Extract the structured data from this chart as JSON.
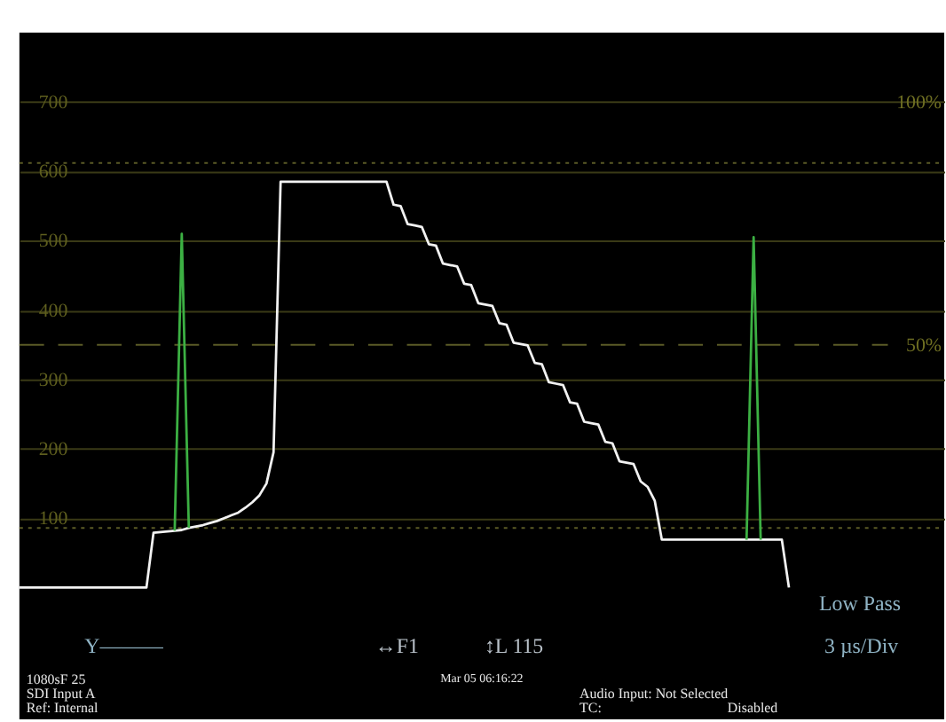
{
  "chart_data": {
    "type": "line",
    "categories": [
      null,
      null,
      null,
      null,
      null,
      null,
      null,
      null,
      null,
      null,
      null,
      null,
      null,
      null,
      null,
      null,
      null,
      null,
      null,
      null,
      null,
      null,
      null,
      null,
      null,
      null,
      null,
      null,
      null,
      null,
      null,
      null,
      null,
      null,
      null,
      null,
      null,
      null,
      null,
      null,
      null,
      null,
      null,
      null,
      null,
      null,
      null,
      null,
      null,
      null,
      null,
      null,
      null,
      null,
      null,
      null,
      null,
      null,
      null,
      null,
      null,
      null,
      null,
      null,
      null,
      null,
      null,
      null,
      null,
      null,
      null,
      null,
      null,
      null,
      null,
      null,
      null,
      null,
      null,
      null,
      null,
      null,
      null,
      null,
      null,
      null,
      null,
      null,
      null,
      null,
      null,
      null,
      null,
      null,
      null,
      null,
      null,
      null,
      null,
      null,
      null,
      null,
      null,
      null,
      null,
      null,
      null,
      null,
      null,
      null,
      null,
      null,
      null,
      null,
      null,
      null,
      null,
      null,
      null,
      null,
      null,
      null,
      null,
      null,
      null,
      null,
      null,
      null,
      null,
      null,
      null,
      null
    ],
    "series": [
      {
        "color": "#f2f2f2",
        "values": [
          0,
          0,
          0,
          0,
          0,
          0,
          0,
          0,
          0,
          0,
          0,
          0,
          0,
          0,
          0,
          0,
          0,
          0,
          0,
          79,
          80,
          81,
          82,
          83,
          86,
          88,
          90,
          93,
          96,
          100,
          104,
          108,
          115,
          123,
          133,
          150,
          195,
          585,
          585,
          585,
          585,
          585,
          585,
          585,
          585,
          585,
          585,
          585,
          585,
          585,
          585,
          585,
          585,
          552,
          550,
          524,
          522,
          520,
          495,
          493,
          467,
          465,
          463,
          438,
          436,
          410,
          408,
          406,
          381,
          379,
          353,
          351,
          349,
          324,
          322,
          296,
          294,
          292,
          267,
          265,
          239,
          237,
          235,
          210,
          208,
          182,
          180,
          178,
          153,
          145,
          125,
          69,
          69,
          69,
          69,
          69,
          69,
          69,
          69,
          69,
          69,
          69,
          69,
          69,
          69,
          69,
          69,
          69,
          69,
          0,
          null,
          null,
          null,
          null,
          null,
          null,
          null,
          null,
          null,
          null,
          null,
          null,
          null,
          null,
          null,
          null,
          null,
          null,
          null,
          null,
          null,
          null
        ]
      },
      {
        "color": "#3cb043",
        "values": [
          null,
          null,
          null,
          null,
          null,
          null,
          null,
          null,
          null,
          null,
          null,
          null,
          null,
          null,
          null,
          null,
          null,
          null,
          null,
          null,
          null,
          null,
          82,
          510,
          86,
          null,
          null,
          null,
          null,
          null,
          null,
          null,
          null,
          null,
          null,
          null,
          null,
          null,
          null,
          null,
          null,
          null,
          null,
          null,
          null,
          null,
          null,
          null,
          null,
          null,
          null,
          null,
          null,
          null,
          null,
          null,
          null,
          null,
          null,
          null,
          null,
          null,
          null,
          null,
          null,
          null,
          null,
          null,
          null,
          null,
          null,
          null,
          null,
          null,
          null,
          null,
          null,
          null,
          null,
          null,
          null,
          null,
          null,
          null,
          null,
          null,
          null,
          null,
          null,
          null,
          null,
          null,
          null,
          null,
          null,
          null,
          null,
          null,
          null,
          null,
          null,
          null,
          null,
          69,
          505,
          69,
          null,
          null,
          null,
          null,
          null,
          null,
          null,
          null,
          null,
          null,
          null,
          null,
          null,
          null,
          null,
          null,
          null,
          null,
          null,
          null,
          null,
          null,
          null,
          null,
          null,
          null
        ]
      }
    ],
    "ylim": [
      -190,
      800
    ],
    "yticks": [
      100,
      200,
      300,
      400,
      500,
      600,
      700
    ],
    "y2lim": [
      -27.14,
      114.29
    ],
    "y2ticks": [
      {
        "value": 50,
        "label": "50%"
      },
      {
        "value": 100,
        "label": "100%"
      }
    ],
    "grid": "y",
    "tick_labels": "y",
    "legend": false,
    "ref_lines": [
      {
        "axis": "y",
        "value": 350,
        "label": null,
        "color": "#5a5a26",
        "line_style": "dashed"
      },
      {
        "axis": "y",
        "value": 612,
        "label": null,
        "color": "#5a5a26",
        "line_style": "dotted"
      },
      {
        "axis": "y",
        "value": 86,
        "label": null,
        "color": "#5a5a26",
        "line_style": "dotted"
      }
    ],
    "annotations": [
      "Low Pass",
      "Y———",
      "↔F1",
      "↕L 115",
      "3 µs/Div",
      "1080sF 25",
      "SDI Input A",
      "Ref: Internal",
      "Mar 05 06:16:22",
      "Audio Input: Not Selected",
      "TC:",
      "Disabled"
    ]
  }
}
